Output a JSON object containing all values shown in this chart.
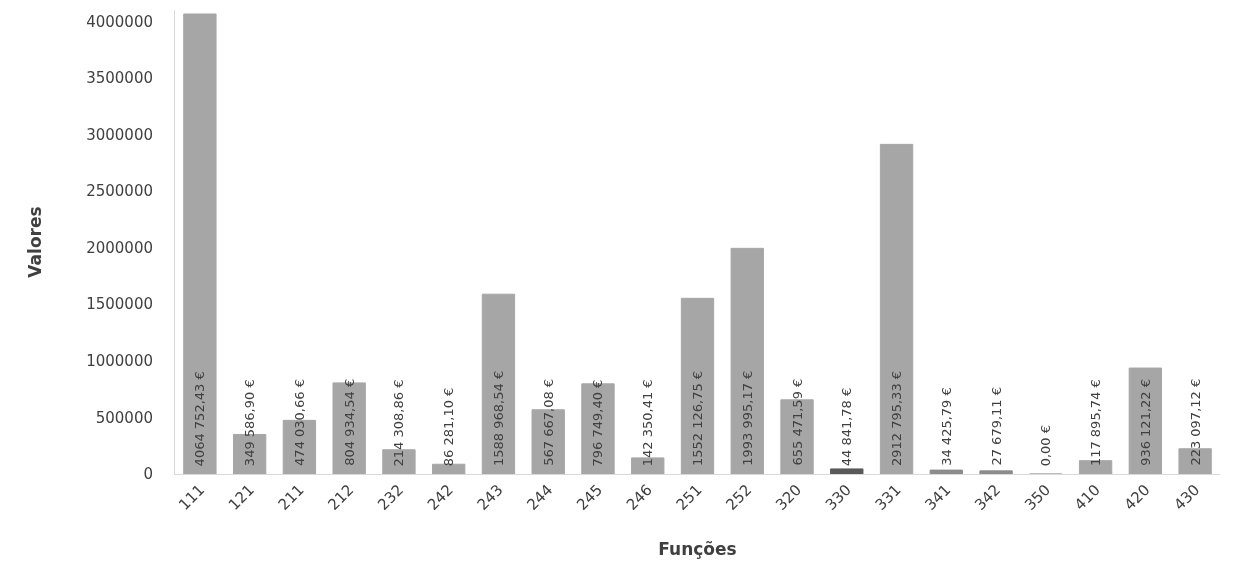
{
  "chart_data": {
    "type": "bar",
    "xlabel": "Funções",
    "ylabel": "Valores",
    "categories": [
      "111",
      "121",
      "211",
      "212",
      "232",
      "242",
      "243",
      "244",
      "245",
      "246",
      "251",
      "252",
      "320",
      "330",
      "331",
      "341",
      "342",
      "350",
      "410",
      "420",
      "430"
    ],
    "values": [
      4064752.43,
      349586.9,
      474030.66,
      804934.54,
      214308.86,
      86281.1,
      1588968.54,
      567667.08,
      796749.4,
      142350.41,
      1552126.75,
      1993995.17,
      655471.59,
      44841.78,
      2912795.33,
      34425.79,
      27679.11,
      0.0,
      117895.74,
      936121.22,
      223097.12
    ],
    "value_labels": [
      "4064 752,43 €",
      "349 586,90 €",
      "474 030,66 €",
      "804 934,54 €",
      "214 308,86 €",
      "86 281,10 €",
      "1588 968,54 €",
      "567 667,08 €",
      "796 749,40 €",
      "142 350,41 €",
      "1552 126,75 €",
      "1993 995,17 €",
      "655 471,59 €",
      "44 841,78 €",
      "2912 795,33 €",
      "34 425,79 €",
      "27 679,11 €",
      "0,00 €",
      "117 895,74 €",
      "936 121,22 €",
      "223 097,12 €"
    ],
    "colors": [
      "#a6a6a6",
      "#a6a6a6",
      "#a6a6a6",
      "#a6a6a6",
      "#a6a6a6",
      "#a6a6a6",
      "#a6a6a6",
      "#a6a6a6",
      "#a6a6a6",
      "#a6a6a6",
      "#a6a6a6",
      "#a6a6a6",
      "#a6a6a6",
      "#595959",
      "#a6a6a6",
      "#8c8c8c",
      "#8c8c8c",
      "#a6a6a6",
      "#a6a6a6",
      "#a6a6a6",
      "#a6a6a6"
    ],
    "ylim": [
      0,
      4100000
    ],
    "yticks": [
      0,
      500000,
      1000000,
      1500000,
      2000000,
      2500000,
      3000000,
      3500000,
      4000000
    ],
    "grid": false
  }
}
